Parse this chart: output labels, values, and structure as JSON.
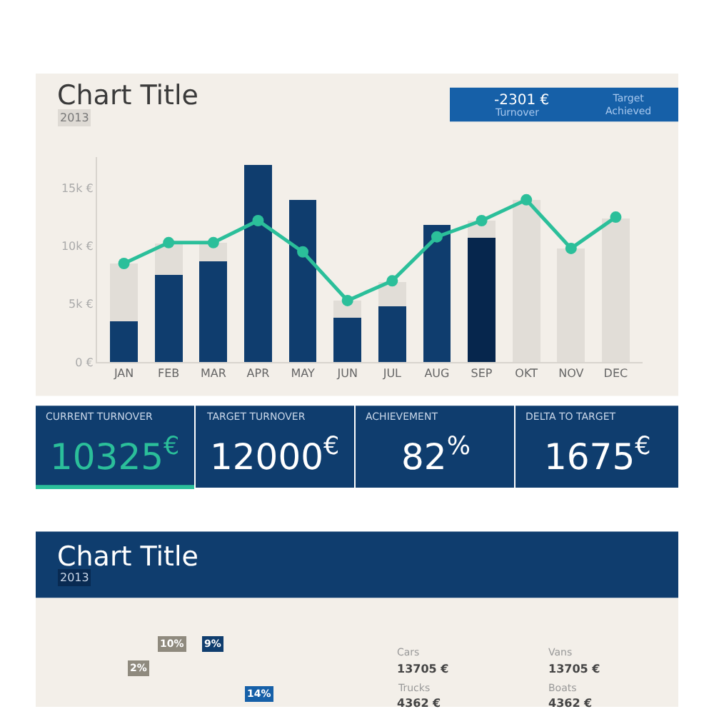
{
  "chart_data": [
    {
      "type": "bar",
      "title": "Chart Title",
      "subtitle": "2013",
      "stacked": true,
      "legend": false,
      "grid": false,
      "categories": [
        "JAN",
        "FEB",
        "MAR",
        "APR",
        "MAY",
        "JUN",
        "JUL",
        "AUG",
        "SEP",
        "OKT",
        "NOV",
        "DEC"
      ],
      "series": [
        {
          "color": "#0f3d6e",
          "colors": [
            "#0f3d6e",
            "#0f3d6e",
            "#0f3d6e",
            "#0f3d6e",
            "#0f3d6e",
            "#0f3d6e",
            "#0f3d6e",
            "#0f3d6e",
            "#06264d",
            "#0f3d6e",
            "#0f3d6e",
            "#0f3d6e"
          ],
          "values": [
            3500,
            7500,
            8700,
            17000,
            14000,
            3800,
            4800,
            11800,
            10700,
            null,
            null,
            null
          ]
        },
        {
          "color": "#e1ddd7",
          "values": [
            5000,
            2700,
            1600,
            null,
            null,
            1500,
            2100,
            null,
            1500,
            14000,
            9800,
            12400
          ]
        },
        {
          "type": "line",
          "color": "#2bbf9a",
          "marker": "circle",
          "line_style": "solid",
          "values": [
            8500,
            10300,
            10300,
            12200,
            9500,
            5300,
            7000,
            10800,
            12200,
            14000,
            9800,
            12500
          ]
        }
      ],
      "ylim": [
        0,
        17700
      ],
      "yticks": [
        {
          "value": 0,
          "label": "0 €"
        },
        {
          "value": 5000,
          "label": "5k €"
        },
        {
          "value": 10000,
          "label": "10k €"
        },
        {
          "value": 15000,
          "label": "15k €"
        }
      ],
      "annotations": [
        "-2301 €",
        "Turnover",
        "Target Achieved"
      ]
    },
    {
      "type": "other",
      "annotations": [
        "CURRENT TURNOVER",
        "10325$^{€}$",
        "TARGET TURNOVER",
        "12000$^{€}$",
        "ACHIEVEMENT",
        "82$^{%}$",
        "DELTA TO TARGET",
        "1675$^{€}$"
      ]
    },
    {
      "type": "other",
      "title": "Chart Title",
      "subtitle": "2013",
      "annotations": [
        "10%",
        "9%",
        "2%",
        "14%",
        "Cars",
        "13705 €",
        "Vans",
        "13705 €",
        "Trucks",
        "4362 €",
        "Boats",
        "4362 €"
      ]
    }
  ]
}
